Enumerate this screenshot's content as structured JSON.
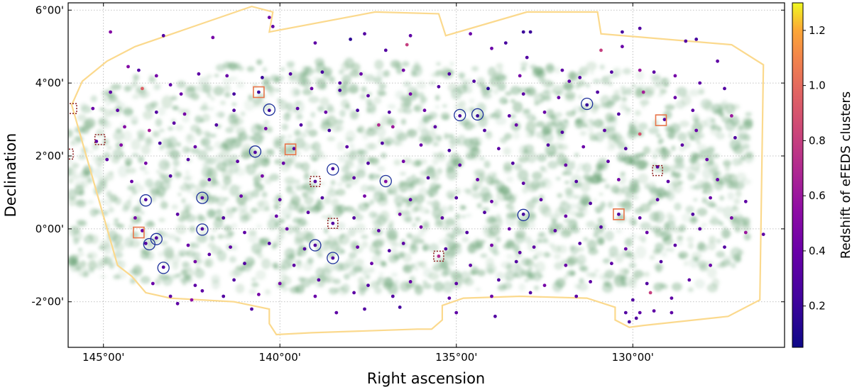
{
  "chart_data": {
    "type": "scatter",
    "xlabel": "Right ascension",
    "ylabel": "Declination",
    "colorbar_label": "Redshift of eFEDS clusters",
    "xlim": [
      146.0,
      125.7
    ],
    "ylim": [
      -3.25,
      6.2
    ],
    "x_reversed": true,
    "x_ticks": [
      145,
      140,
      135,
      130
    ],
    "x_tick_labels": [
      "145°00'",
      "140°00'",
      "135°00'",
      "130°00'"
    ],
    "y_ticks": [
      -2,
      0,
      2,
      4,
      6
    ],
    "y_tick_labels": [
      "-2°00'",
      "0°00'",
      "2°00'",
      "4°00'",
      "6°00'"
    ],
    "grid": true,
    "colorbar_range": [
      0.05,
      1.3
    ],
    "colorbar_ticks": [
      0.2,
      0.4,
      0.6,
      0.8,
      1.0,
      1.2
    ],
    "colorbar_tick_labels": [
      "0.2",
      "0.4",
      "0.6",
      "0.8",
      "1.0",
      "1.2"
    ],
    "colormap": "plasma",
    "colors": {
      "footprint_outline": "#fbd98d",
      "background_map": "#5d9a6a",
      "blue_circle": "#1c2f9a",
      "orange_square": "#e8754a",
      "dotted_square": "#8b1a1a"
    },
    "footprint_outline": [
      [
        144.1,
        5.0
      ],
      [
        140.8,
        6.1
      ],
      [
        140.2,
        5.95
      ],
      [
        140.3,
        5.4
      ],
      [
        137.3,
        5.95
      ],
      [
        135.5,
        5.9
      ],
      [
        135.3,
        5.3
      ],
      [
        133.0,
        5.95
      ],
      [
        131.0,
        5.95
      ],
      [
        130.9,
        5.35
      ],
      [
        127.2,
        5.05
      ],
      [
        126.3,
        4.5
      ],
      [
        126.4,
        -1.95
      ],
      [
        127.3,
        -2.4
      ],
      [
        129.7,
        -2.65
      ],
      [
        130.1,
        -2.7
      ],
      [
        130.5,
        -2.5
      ],
      [
        130.5,
        -2.15
      ],
      [
        131.3,
        -1.9
      ],
      [
        133.2,
        -1.85
      ],
      [
        134.8,
        -1.9
      ],
      [
        135.4,
        -2.1
      ],
      [
        135.4,
        -2.5
      ],
      [
        135.7,
        -2.75
      ],
      [
        136.1,
        -2.75
      ],
      [
        139.1,
        -2.85
      ],
      [
        140.1,
        -2.9
      ],
      [
        140.3,
        -2.6
      ],
      [
        140.3,
        -2.2
      ],
      [
        141.3,
        -2.0
      ],
      [
        143.1,
        -1.9
      ],
      [
        143.8,
        -1.75
      ],
      [
        144.2,
        -1.3
      ],
      [
        144.6,
        -1.0
      ],
      [
        145.9,
        3.4
      ],
      [
        145.6,
        4.05
      ],
      [
        144.9,
        4.6
      ],
      [
        144.1,
        5.0
      ]
    ],
    "clusters": [
      [
        140.3,
        5.8,
        0.4
      ],
      [
        140.2,
        5.55,
        0.35
      ],
      [
        144.8,
        5.4,
        0.5
      ],
      [
        143.3,
        5.3,
        0.3
      ],
      [
        137.6,
        5.35,
        0.3
      ],
      [
        136.3,
        5.3,
        0.35
      ],
      [
        136.4,
        5.05,
        0.8
      ],
      [
        133.1,
        5.4,
        0.2
      ],
      [
        132.9,
        5.4,
        0.2
      ],
      [
        133.6,
        5.1,
        0.25
      ],
      [
        133.0,
        4.7,
        0.3
      ],
      [
        130.3,
        5.4,
        0.25
      ],
      [
        129.8,
        5.5,
        0.3
      ],
      [
        130.3,
        5.0,
        0.4
      ],
      [
        130.9,
        4.9,
        0.8
      ],
      [
        128.2,
        5.2,
        0.25
      ],
      [
        128.5,
        5.15,
        0.3
      ],
      [
        127.6,
        4.6,
        0.35
      ],
      [
        138.0,
        5.2,
        0.15
      ],
      [
        141.9,
        5.25,
        0.45
      ],
      [
        134.6,
        5.35,
        0.4
      ],
      [
        144.3,
        4.45,
        0.5
      ],
      [
        144.0,
        4.35,
        0.3
      ],
      [
        143.5,
        4.2,
        0.45
      ],
      [
        142.3,
        4.25,
        0.35
      ],
      [
        141.5,
        4.2,
        0.4
      ],
      [
        140.5,
        4.15,
        0.2
      ],
      [
        139.7,
        4.25,
        0.3
      ],
      [
        138.8,
        4.3,
        0.25
      ],
      [
        137.7,
        4.25,
        0.4
      ],
      [
        136.5,
        4.35,
        0.45
      ],
      [
        135.2,
        4.25,
        0.3
      ],
      [
        134.5,
        4.05,
        0.3
      ],
      [
        133.2,
        4.2,
        0.45
      ],
      [
        132.0,
        4.35,
        0.35
      ],
      [
        131.5,
        4.15,
        0.3
      ],
      [
        130.6,
        4.3,
        0.3
      ],
      [
        129.8,
        4.35,
        0.6
      ],
      [
        129.4,
        4.3,
        0.35
      ],
      [
        128.8,
        4.2,
        0.45
      ],
      [
        128.1,
        4.0,
        0.35
      ],
      [
        127.4,
        3.85,
        0.3
      ],
      [
        143.9,
        3.85,
        0.95
      ],
      [
        144.8,
        3.75,
        0.35
      ],
      [
        143.1,
        3.95,
        0.35
      ],
      [
        142.8,
        3.7,
        0.4
      ],
      [
        141.3,
        3.7,
        0.25
      ],
      [
        140.6,
        3.75,
        0.2
      ],
      [
        139.1,
        3.85,
        0.4
      ],
      [
        138.3,
        3.8,
        0.25
      ],
      [
        137.5,
        3.65,
        0.35
      ],
      [
        136.3,
        3.7,
        0.45
      ],
      [
        135.5,
        3.9,
        0.3
      ],
      [
        134.1,
        3.85,
        0.15
      ],
      [
        133.1,
        3.7,
        0.35
      ],
      [
        132.1,
        3.6,
        0.4
      ],
      [
        131.0,
        3.75,
        0.3
      ],
      [
        129.7,
        3.75,
        0.65
      ],
      [
        128.8,
        3.6,
        0.4
      ],
      [
        145.3,
        3.3,
        0.4
      ],
      [
        144.6,
        3.25,
        0.35
      ],
      [
        143.5,
        3.2,
        0.3
      ],
      [
        142.7,
        3.15,
        0.45
      ],
      [
        141.3,
        3.25,
        0.3
      ],
      [
        140.3,
        3.25,
        0.2
      ],
      [
        139.5,
        3.3,
        0.35
      ],
      [
        138.7,
        3.2,
        0.4
      ],
      [
        137.8,
        3.25,
        0.25
      ],
      [
        136.9,
        3.2,
        0.3
      ],
      [
        135.9,
        3.25,
        0.4
      ],
      [
        134.9,
        3.1,
        0.25
      ],
      [
        134.4,
        3.1,
        0.2
      ],
      [
        133.5,
        3.1,
        0.35
      ],
      [
        132.5,
        3.2,
        0.4
      ],
      [
        131.3,
        3.4,
        0.2
      ],
      [
        130.4,
        3.15,
        0.3
      ],
      [
        129.1,
        3.0,
        0.3
      ],
      [
        128.3,
        3.25,
        0.35
      ],
      [
        127.2,
        3.1,
        0.6
      ],
      [
        144.4,
        2.8,
        0.5
      ],
      [
        143.7,
        2.7,
        0.65
      ],
      [
        143.0,
        2.9,
        0.35
      ],
      [
        141.8,
        2.85,
        0.3
      ],
      [
        140.4,
        2.75,
        0.45
      ],
      [
        139.4,
        2.85,
        0.3
      ],
      [
        138.6,
        2.7,
        0.25
      ],
      [
        137.2,
        2.85,
        0.7
      ],
      [
        136.8,
        2.8,
        0.6
      ],
      [
        135.6,
        2.8,
        0.35
      ],
      [
        134.2,
        2.7,
        0.3
      ],
      [
        133.3,
        2.85,
        0.4
      ],
      [
        132.0,
        2.65,
        0.3
      ],
      [
        130.8,
        2.7,
        0.35
      ],
      [
        129.8,
        2.6,
        0.9
      ],
      [
        128.2,
        2.7,
        0.4
      ],
      [
        145.2,
        2.4,
        0.35
      ],
      [
        144.5,
        2.3,
        0.5
      ],
      [
        143.4,
        2.35,
        0.25
      ],
      [
        142.4,
        2.25,
        0.4
      ],
      [
        140.7,
        2.1,
        0.3
      ],
      [
        139.6,
        2.2,
        0.3
      ],
      [
        138.1,
        2.25,
        0.35
      ],
      [
        137.1,
        2.35,
        0.3
      ],
      [
        136.0,
        2.3,
        0.4
      ],
      [
        135.2,
        2.15,
        0.25
      ],
      [
        133.8,
        2.2,
        0.35
      ],
      [
        132.4,
        2.3,
        0.3
      ],
      [
        131.4,
        2.25,
        0.4
      ],
      [
        130.2,
        2.2,
        0.3
      ],
      [
        128.6,
        2.3,
        0.35
      ],
      [
        127.1,
        2.5,
        0.3
      ],
      [
        144.9,
        1.9,
        0.35
      ],
      [
        143.8,
        1.8,
        0.45
      ],
      [
        142.6,
        1.9,
        0.3
      ],
      [
        141.2,
        1.85,
        0.35
      ],
      [
        139.9,
        1.8,
        0.4
      ],
      [
        138.5,
        1.65,
        0.25
      ],
      [
        137.5,
        1.8,
        0.3
      ],
      [
        136.5,
        1.85,
        0.45
      ],
      [
        134.9,
        1.75,
        0.35
      ],
      [
        133.4,
        1.8,
        0.3
      ],
      [
        131.9,
        1.75,
        0.4
      ],
      [
        130.7,
        1.85,
        0.35
      ],
      [
        129.3,
        1.7,
        0.3
      ],
      [
        127.9,
        1.9,
        0.4
      ],
      [
        144.2,
        1.3,
        0.4
      ],
      [
        143.1,
        1.45,
        0.3
      ],
      [
        142.0,
        1.35,
        0.35
      ],
      [
        140.5,
        1.45,
        0.45
      ],
      [
        139.0,
        1.3,
        0.3
      ],
      [
        137.9,
        1.4,
        0.35
      ],
      [
        137.0,
        1.3,
        0.5
      ],
      [
        135.8,
        1.4,
        0.3
      ],
      [
        134.4,
        1.35,
        0.4
      ],
      [
        133.1,
        1.25,
        0.35
      ],
      [
        131.6,
        1.3,
        0.3
      ],
      [
        130.4,
        1.35,
        0.45
      ],
      [
        129.0,
        1.3,
        0.35
      ],
      [
        127.6,
        1.35,
        0.4
      ],
      [
        143.8,
        0.8,
        0.3
      ],
      [
        142.2,
        0.85,
        0.3
      ],
      [
        141.1,
        0.9,
        0.4
      ],
      [
        140.0,
        0.8,
        0.35
      ],
      [
        138.8,
        0.85,
        0.3
      ],
      [
        137.6,
        0.9,
        0.45
      ],
      [
        136.3,
        0.8,
        0.35
      ],
      [
        135.0,
        0.85,
        0.3
      ],
      [
        134.0,
        0.75,
        0.4
      ],
      [
        132.6,
        0.8,
        0.35
      ],
      [
        131.2,
        0.7,
        0.3
      ],
      [
        130.4,
        0.4,
        0.3
      ],
      [
        129.3,
        0.8,
        0.35
      ],
      [
        127.8,
        0.85,
        0.4
      ],
      [
        126.8,
        0.75,
        0.35
      ],
      [
        144.1,
        0.3,
        0.45
      ],
      [
        142.9,
        0.4,
        0.35
      ],
      [
        141.6,
        0.3,
        0.3
      ],
      [
        140.1,
        0.35,
        0.4
      ],
      [
        139.2,
        0.45,
        0.35
      ],
      [
        137.9,
        0.3,
        0.3
      ],
      [
        136.6,
        0.4,
        0.45
      ],
      [
        135.4,
        0.3,
        0.35
      ],
      [
        134.2,
        0.45,
        0.3
      ],
      [
        133.1,
        0.4,
        0.25
      ],
      [
        131.9,
        0.35,
        0.4
      ],
      [
        129.8,
        0.3,
        0.35
      ],
      [
        128.3,
        0.4,
        0.3
      ],
      [
        127.2,
        0.3,
        0.45
      ],
      [
        143.9,
        -0.05,
        0.4
      ],
      [
        142.2,
        0.0,
        0.3
      ],
      [
        141.0,
        -0.1,
        0.35
      ],
      [
        139.8,
        0.0,
        0.4
      ],
      [
        138.5,
        0.15,
        0.3
      ],
      [
        137.2,
        -0.05,
        0.35
      ],
      [
        136.0,
        0.05,
        0.45
      ],
      [
        134.7,
        -0.1,
        0.3
      ],
      [
        133.5,
        0.0,
        0.4
      ],
      [
        132.2,
        -0.05,
        0.35
      ],
      [
        130.9,
        0.05,
        0.3
      ],
      [
        129.6,
        -0.1,
        0.4
      ],
      [
        128.1,
        0.0,
        0.35
      ],
      [
        126.8,
        -0.1,
        0.6
      ],
      [
        126.3,
        -0.15,
        0.35
      ],
      [
        143.8,
        -0.4,
        0.3
      ],
      [
        143.5,
        -0.25,
        0.3
      ],
      [
        142.6,
        -0.45,
        0.4
      ],
      [
        141.4,
        -0.5,
        0.35
      ],
      [
        140.3,
        -0.4,
        0.3
      ],
      [
        139.0,
        -0.45,
        0.3
      ],
      [
        137.8,
        -0.5,
        0.4
      ],
      [
        136.5,
        -0.4,
        0.35
      ],
      [
        135.3,
        -0.55,
        0.3
      ],
      [
        134.0,
        -0.45,
        0.45
      ],
      [
        132.8,
        -0.5,
        0.35
      ],
      [
        131.5,
        -0.4,
        0.3
      ],
      [
        130.2,
        -0.55,
        0.4
      ],
      [
        128.8,
        -0.45,
        0.35
      ],
      [
        127.4,
        -0.5,
        0.3
      ],
      [
        143.3,
        -1.05,
        0.3
      ],
      [
        142.4,
        -0.9,
        0.45
      ],
      [
        141.0,
        -0.95,
        0.3
      ],
      [
        139.6,
        -1.0,
        0.35
      ],
      [
        138.5,
        -0.8,
        0.3
      ],
      [
        137.4,
        -0.95,
        0.4
      ],
      [
        135.5,
        -0.75,
        0.7
      ],
      [
        134.6,
        -1.0,
        0.35
      ],
      [
        133.3,
        -0.9,
        0.3
      ],
      [
        131.9,
        -1.0,
        0.4
      ],
      [
        130.6,
        -0.95,
        0.35
      ],
      [
        129.2,
        -0.9,
        0.3
      ],
      [
        127.8,
        -1.0,
        0.4
      ],
      [
        143.6,
        -1.5,
        0.4
      ],
      [
        142.4,
        -1.55,
        0.35
      ],
      [
        141.3,
        -1.4,
        0.3
      ],
      [
        140.0,
        -1.5,
        0.45
      ],
      [
        138.9,
        -1.4,
        0.35
      ],
      [
        137.5,
        -1.55,
        0.3
      ],
      [
        136.3,
        -1.45,
        0.4
      ],
      [
        135.0,
        -1.5,
        0.35
      ],
      [
        133.8,
        -1.4,
        0.3
      ],
      [
        132.5,
        -1.55,
        0.45
      ],
      [
        131.2,
        -1.45,
        0.35
      ],
      [
        129.6,
        -1.5,
        0.3
      ],
      [
        128.4,
        -1.4,
        0.35
      ],
      [
        143.1,
        -1.85,
        0.35
      ],
      [
        142.2,
        -1.7,
        0.35
      ],
      [
        141.6,
        -1.85,
        0.3
      ],
      [
        140.6,
        -1.8,
        0.45
      ],
      [
        139.0,
        -1.85,
        0.4
      ],
      [
        137.9,
        -1.75,
        0.35
      ],
      [
        136.8,
        -1.85,
        0.3
      ],
      [
        135.2,
        -1.9,
        0.35
      ],
      [
        134.0,
        -1.85,
        0.4
      ],
      [
        132.9,
        -1.75,
        0.3
      ],
      [
        131.6,
        -1.85,
        0.35
      ],
      [
        130.0,
        -1.95,
        0.3
      ],
      [
        129.5,
        -1.75,
        0.8
      ],
      [
        128.9,
        -1.9,
        0.35
      ],
      [
        142.9,
        -2.05,
        0.35
      ],
      [
        142.5,
        -1.95,
        0.55
      ],
      [
        140.8,
        -2.2,
        0.3
      ],
      [
        138.4,
        -2.3,
        0.35
      ],
      [
        137.6,
        -2.2,
        0.3
      ],
      [
        136.6,
        -2.15,
        0.25
      ],
      [
        135.0,
        -2.3,
        0.35
      ],
      [
        133.9,
        -2.4,
        0.3
      ],
      [
        130.2,
        -2.3,
        0.3
      ],
      [
        129.8,
        -2.3,
        0.35
      ],
      [
        129.4,
        -2.25,
        0.35
      ],
      [
        128.9,
        -2.3,
        0.35
      ],
      [
        130.1,
        -2.55,
        0.25
      ],
      [
        129.9,
        -2.45,
        0.3
      ],
      [
        142.0,
        -0.7,
        0.35
      ],
      [
        139.3,
        -0.55,
        0.3
      ],
      [
        136.9,
        -0.6,
        0.3
      ],
      [
        133.2,
        -0.65,
        0.35
      ],
      [
        138.3,
        4.0,
        0.3
      ],
      [
        131.8,
        4.05,
        0.35
      ],
      [
        137.0,
        4.9,
        0.3
      ],
      [
        134.0,
        4.95,
        0.4
      ],
      [
        139.0,
        5.1,
        0.35
      ]
    ],
    "blue_circles": [
      [
        143.8,
        0.78
      ],
      [
        142.2,
        0.85
      ],
      [
        143.5,
        -0.28
      ],
      [
        143.7,
        -0.42
      ],
      [
        142.2,
        -0.02
      ],
      [
        143.3,
        -1.07
      ],
      [
        140.7,
        2.12
      ],
      [
        140.3,
        3.27
      ],
      [
        138.5,
        1.63
      ],
      [
        137.0,
        1.31
      ],
      [
        139.0,
        -0.45
      ],
      [
        138.5,
        -0.8
      ],
      [
        134.9,
        3.12
      ],
      [
        134.4,
        3.14
      ],
      [
        133.1,
        0.38
      ],
      [
        131.3,
        3.43
      ]
    ],
    "orange_squares": [
      [
        140.6,
        3.75
      ],
      [
        139.7,
        2.18
      ],
      [
        144.0,
        -0.1
      ],
      [
        130.4,
        0.4
      ],
      [
        129.2,
        2.98
      ]
    ],
    "dotted_squares": [
      [
        145.9,
        3.3
      ],
      [
        145.1,
        2.45
      ],
      [
        146.0,
        2.05
      ],
      [
        139.0,
        1.3
      ],
      [
        138.5,
        0.15
      ],
      [
        135.5,
        -0.75
      ],
      [
        129.3,
        1.6
      ]
    ]
  }
}
